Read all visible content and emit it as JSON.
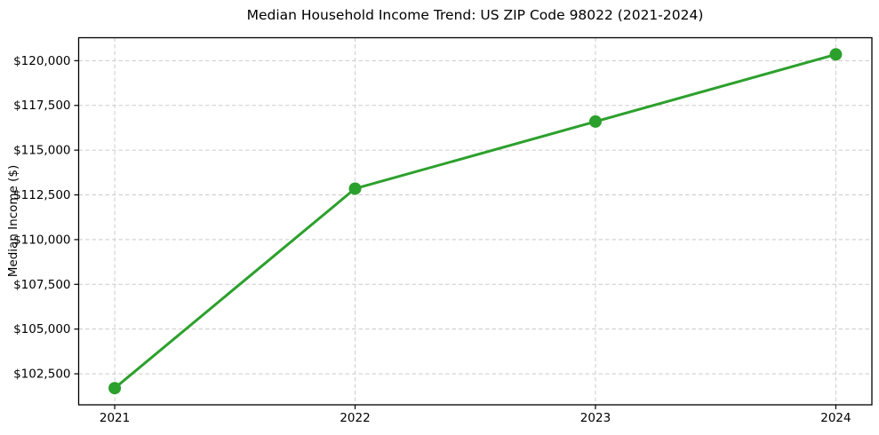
{
  "chart_data": {
    "type": "line",
    "title": "Median Household Income Trend: US ZIP Code 98022 (2021-2024)",
    "xlabel": "",
    "ylabel": "Median Income ($)",
    "x": [
      2021,
      2022,
      2023,
      2024
    ],
    "x_tick_labels": [
      "2021",
      "2022",
      "2023",
      "2024"
    ],
    "series": [
      {
        "name": "Median Household Income",
        "values": [
          101700,
          112850,
          116600,
          120350
        ],
        "color": "#2ca02c",
        "marker": "circle"
      }
    ],
    "y_ticks": [
      102500,
      105000,
      107500,
      110000,
      112500,
      115000,
      117500,
      120000
    ],
    "y_tick_labels": [
      "$102,500",
      "$105,000",
      "$107,500",
      "$110,000",
      "$112,500",
      "$115,000",
      "$117,500",
      "$120,000"
    ],
    "xlim": [
      2020.85,
      2024.15
    ],
    "ylim": [
      100767,
      121283
    ],
    "grid": true,
    "grid_style": "dashed",
    "legend": false,
    "styles": {
      "line_color": "#2ca02c",
      "marker_color": "#2ca02c",
      "grid_color": "#cccccc",
      "frame_color": "#000000",
      "tick_color": "#000000",
      "text_color": "#000000",
      "background": "#ffffff"
    }
  }
}
